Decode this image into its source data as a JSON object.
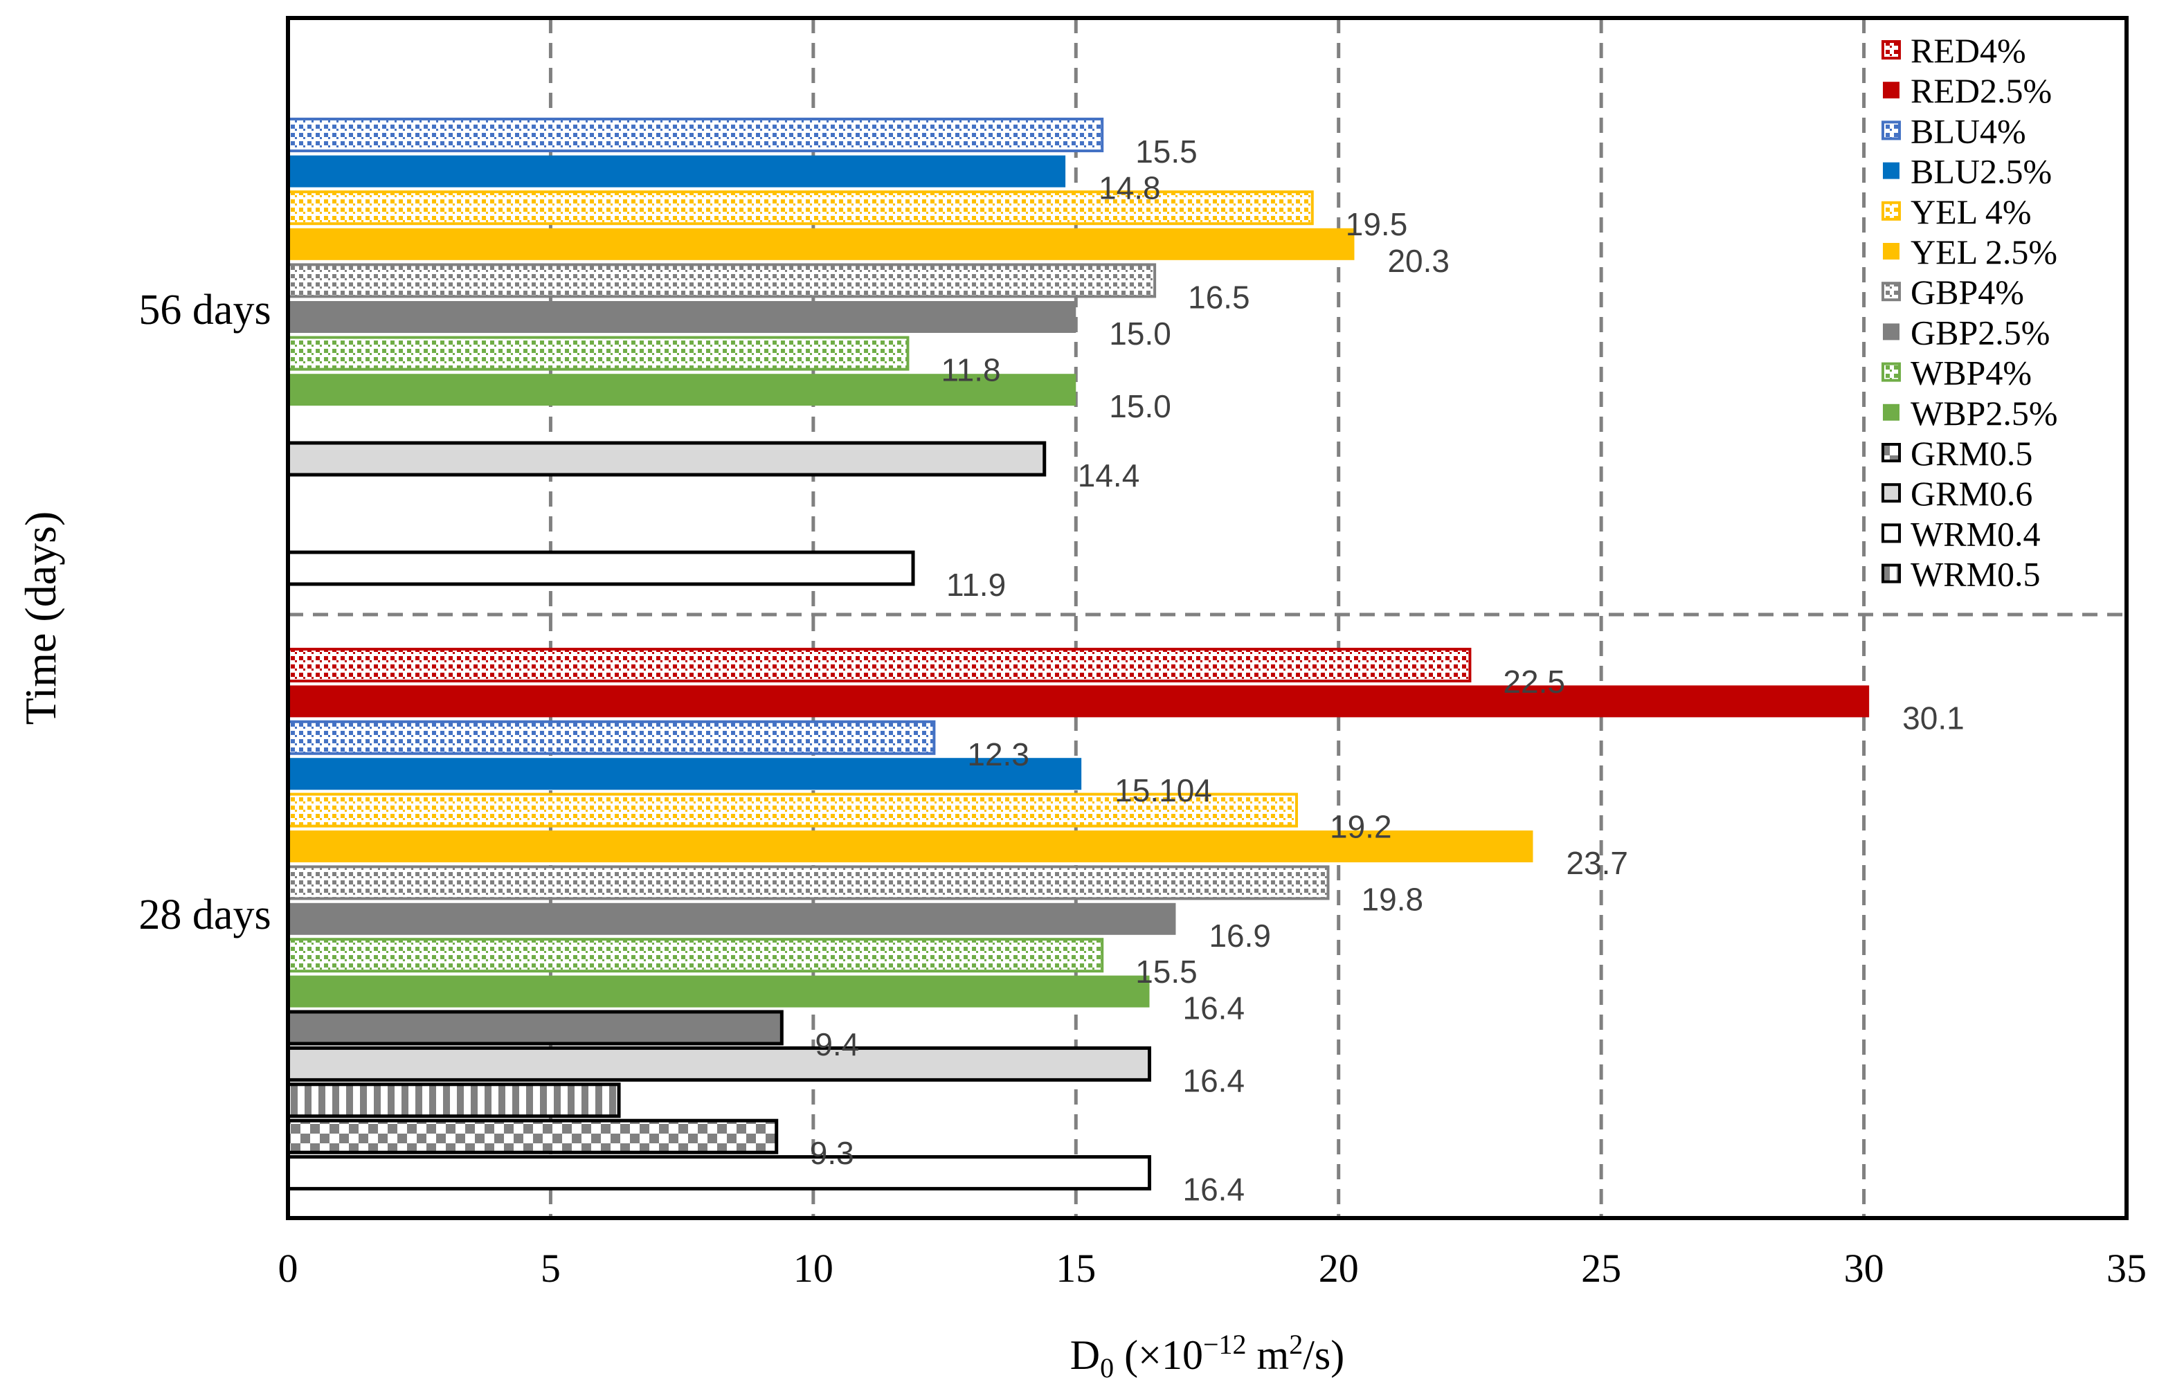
{
  "chart_data": {
    "type": "bar",
    "orientation": "horizontal",
    "xlabel": "D",
    "xlabel_sub": "0",
    "xlabel_units_pre": " (×10",
    "xlabel_units_exp": "−12",
    "xlabel_units_mid": " m",
    "xlabel_units_exp2": "2",
    "xlabel_units_post": "/s)",
    "ylabel": "Time (days)",
    "xlim": [
      0,
      35
    ],
    "xticks": [
      "0",
      "5",
      "10",
      "15",
      "20",
      "25",
      "30",
      "35"
    ],
    "grid": "vertical dashed",
    "legend_position": "top-right",
    "series_styles": {
      "RED4%": {
        "color": "#C00000",
        "pattern": "dots",
        "fill": "#C00000"
      },
      "RED2.5%": {
        "color": "#C00000",
        "pattern": "solid",
        "fill": "#C00000"
      },
      "BLU4%": {
        "color": "#4472C4",
        "pattern": "dots",
        "fill": "#4472C4"
      },
      "BLU2.5%": {
        "color": "#0070C0",
        "pattern": "solid",
        "fill": "#0070C0"
      },
      "YEL 4%": {
        "color": "#FFC000",
        "pattern": "dots",
        "fill": "#FFC000"
      },
      "YEL 2.5%": {
        "color": "#FFC000",
        "pattern": "solid",
        "fill": "#FFC000"
      },
      "GBP4%": {
        "color": "#808080",
        "pattern": "dots",
        "fill": "#808080"
      },
      "GBP2.5%": {
        "color": "#7F7F7F",
        "pattern": "solid",
        "fill": "#7F7F7F"
      },
      "WBP4%": {
        "color": "#70AD47",
        "pattern": "dots",
        "fill": "#70AD47"
      },
      "WBP2.5%": {
        "color": "#70AD47",
        "pattern": "solid",
        "fill": "#70AD47"
      },
      "GRM0.5": {
        "color": "#000000",
        "pattern": "checker",
        "fill": "#808080"
      },
      "GRM0.6": {
        "color": "#000000",
        "pattern": "solid",
        "fill": "#D9D9D9"
      },
      "WRM0.4": {
        "color": "#000000",
        "pattern": "solid",
        "fill": "#FFFFFF"
      },
      "WRM0.5": {
        "color": "#000000",
        "pattern": "stripes",
        "fill": "#808080"
      }
    },
    "legend": [
      "RED4%",
      "RED2.5%",
      "BLU4%",
      "BLU2.5%",
      "YEL 4%",
      "YEL 2.5%",
      "GBP4%",
      "GBP2.5%",
      "WBP4%",
      "WBP2.5%",
      "GRM0.5",
      "GRM0.6",
      "WRM0.4",
      "WRM0.5"
    ],
    "groups": [
      {
        "label": "56 days",
        "bars": [
          {
            "series": "BLU4%",
            "value": 15.5,
            "label": "15.5"
          },
          {
            "series": "BLU2.5%",
            "value": 14.8,
            "label": "14.8"
          },
          {
            "series": "YEL 4%",
            "value": 19.5,
            "label": "19.5"
          },
          {
            "series": "YEL 2.5%",
            "value": 20.3,
            "label": "20.3"
          },
          {
            "series": "GBP4%",
            "value": 16.5,
            "label": "16.5"
          },
          {
            "series": "GBP2.5%",
            "value": 15.0,
            "label": "15.0"
          },
          {
            "series": "WBP4%",
            "value": 11.8,
            "label": "11.8"
          },
          {
            "series": "WBP2.5%",
            "value": 15.0,
            "label": "15.0"
          },
          {
            "series": "GRM0.6",
            "value": 14.4,
            "label": "14.4"
          },
          {
            "series": "WRM0.4",
            "value": 11.9,
            "label": "11.9"
          }
        ]
      },
      {
        "label": "28 days",
        "bars": [
          {
            "series": "RED4%",
            "value": 22.5,
            "label": "22.5"
          },
          {
            "series": "RED2.5%",
            "value": 30.1,
            "label": "30.1"
          },
          {
            "series": "BLU4%",
            "value": 12.3,
            "label": "12.3"
          },
          {
            "series": "BLU2.5%",
            "value": 15.104,
            "label": "15.104"
          },
          {
            "series": "YEL 4%",
            "value": 19.2,
            "label": "19.2"
          },
          {
            "series": "YEL 2.5%",
            "value": 23.7,
            "label": "23.7"
          },
          {
            "series": "GBP4%",
            "value": 19.8,
            "label": "19.8"
          },
          {
            "series": "GBP2.5%",
            "value": 16.9,
            "label": "16.9"
          },
          {
            "series": "WBP4%",
            "value": 15.5,
            "label": "15.5"
          },
          {
            "series": "WBP2.5%",
            "value": 16.4,
            "label": "16.4"
          },
          {
            "series": "GBP2.5%",
            "value": 9.4,
            "label": "9.4",
            "outline": "#000000"
          },
          {
            "series": "GRM0.6",
            "value": 16.4,
            "label": "16.4"
          },
          {
            "series": "WRM0.5",
            "value": 6.3,
            "label": ""
          },
          {
            "series": "GRM0.5",
            "value": 9.3,
            "label": "9.3"
          },
          {
            "series": "WRM0.4",
            "value": 16.4,
            "label": "16.4"
          }
        ]
      }
    ]
  }
}
